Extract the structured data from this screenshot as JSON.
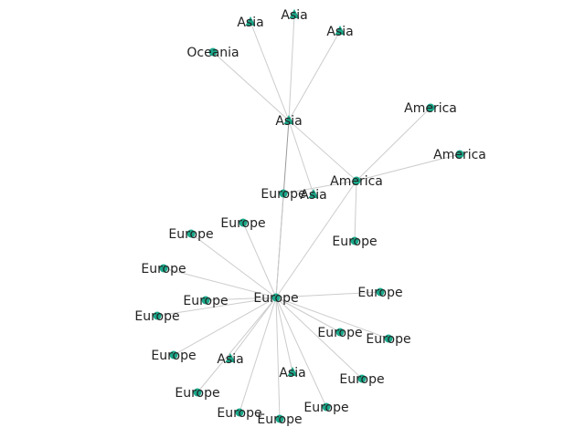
{
  "graph": {
    "colors": {
      "node": "#1aa88a",
      "edge": "#cccccc",
      "label": "#222222"
    },
    "nodes": [
      {
        "id": "n_asia_hub",
        "label": "Asia",
        "shape": "triangle"
      },
      {
        "id": "n_asia_t1",
        "label": "Asia",
        "shape": "triangle"
      },
      {
        "id": "n_asia_t2",
        "label": "Asia",
        "shape": "triangle"
      },
      {
        "id": "n_asia_t3",
        "label": "Asia",
        "shape": "triangle"
      },
      {
        "id": "n_oceania",
        "label": "Oceania",
        "shape": "circle"
      },
      {
        "id": "n_america_hub",
        "label": "America",
        "shape": "circle"
      },
      {
        "id": "n_america_1",
        "label": "America",
        "shape": "circle"
      },
      {
        "id": "n_america_2",
        "label": "America",
        "shape": "circle"
      },
      {
        "id": "n_europe_hub",
        "label": "Europe",
        "shape": "circle"
      },
      {
        "id": "n_europe_a",
        "label": "Europe",
        "shape": "circle"
      },
      {
        "id": "n_asia_mid",
        "label": "Asia",
        "shape": "triangle"
      },
      {
        "id": "n_europe_b",
        "label": "Europe",
        "shape": "circle"
      },
      {
        "id": "n_europe_c",
        "label": "Europe",
        "shape": "circle"
      },
      {
        "id": "n_europe_d",
        "label": "Europe",
        "shape": "circle"
      },
      {
        "id": "n_europe_e",
        "label": "Europe",
        "shape": "circle"
      },
      {
        "id": "n_europe_f",
        "label": "Europe",
        "shape": "circle"
      },
      {
        "id": "n_europe_g",
        "label": "Europe",
        "shape": "circle"
      },
      {
        "id": "n_europe_h",
        "label": "Europe",
        "shape": "circle"
      },
      {
        "id": "n_europe_i",
        "label": "Europe",
        "shape": "circle"
      },
      {
        "id": "n_europe_j",
        "label": "Europe",
        "shape": "circle"
      },
      {
        "id": "n_europe_k",
        "label": "Europe",
        "shape": "circle"
      },
      {
        "id": "n_europe_l",
        "label": "Europe",
        "shape": "circle"
      },
      {
        "id": "n_asia_low1",
        "label": "Asia",
        "shape": "triangle"
      },
      {
        "id": "n_asia_low2",
        "label": "Asia",
        "shape": "triangle"
      },
      {
        "id": "n_europe_m",
        "label": "Europe",
        "shape": "circle"
      },
      {
        "id": "n_europe_n",
        "label": "Europe",
        "shape": "circle"
      },
      {
        "id": "n_europe_o",
        "label": "Europe",
        "shape": "circle"
      },
      {
        "id": "n_europe_p",
        "label": "Europe",
        "shape": "circle"
      },
      {
        "id": "n_europe_q",
        "label": "Europe",
        "shape": "circle"
      }
    ],
    "edges": [
      [
        "n_asia_hub",
        "n_asia_t1"
      ],
      [
        "n_asia_hub",
        "n_asia_t2"
      ],
      [
        "n_asia_hub",
        "n_asia_t3"
      ],
      [
        "n_asia_hub",
        "n_oceania"
      ],
      [
        "n_asia_hub",
        "n_america_hub"
      ],
      [
        "n_asia_hub",
        "n_asia_mid"
      ],
      [
        "n_asia_hub",
        "n_europe_hub"
      ],
      [
        "n_america_hub",
        "n_america_1"
      ],
      [
        "n_america_hub",
        "n_america_2"
      ],
      [
        "n_america_hub",
        "n_europe_a"
      ],
      [
        "n_america_hub",
        "n_europe_b"
      ],
      [
        "n_america_hub",
        "n_europe_hub"
      ],
      [
        "n_europe_hub",
        "n_europe_a"
      ],
      [
        "n_europe_hub",
        "n_europe_c"
      ],
      [
        "n_europe_hub",
        "n_europe_d"
      ],
      [
        "n_europe_hub",
        "n_europe_e"
      ],
      [
        "n_europe_hub",
        "n_europe_f"
      ],
      [
        "n_europe_hub",
        "n_europe_g"
      ],
      [
        "n_europe_hub",
        "n_europe_h"
      ],
      [
        "n_europe_hub",
        "n_europe_i"
      ],
      [
        "n_europe_hub",
        "n_europe_j"
      ],
      [
        "n_europe_hub",
        "n_europe_k"
      ],
      [
        "n_europe_hub",
        "n_europe_l"
      ],
      [
        "n_europe_hub",
        "n_asia_low1"
      ],
      [
        "n_europe_hub",
        "n_asia_low2"
      ],
      [
        "n_europe_hub",
        "n_europe_m"
      ],
      [
        "n_europe_hub",
        "n_europe_n"
      ],
      [
        "n_europe_hub",
        "n_europe_o"
      ],
      [
        "n_europe_hub",
        "n_europe_p"
      ],
      [
        "n_europe_hub",
        "n_europe_q"
      ]
    ]
  }
}
